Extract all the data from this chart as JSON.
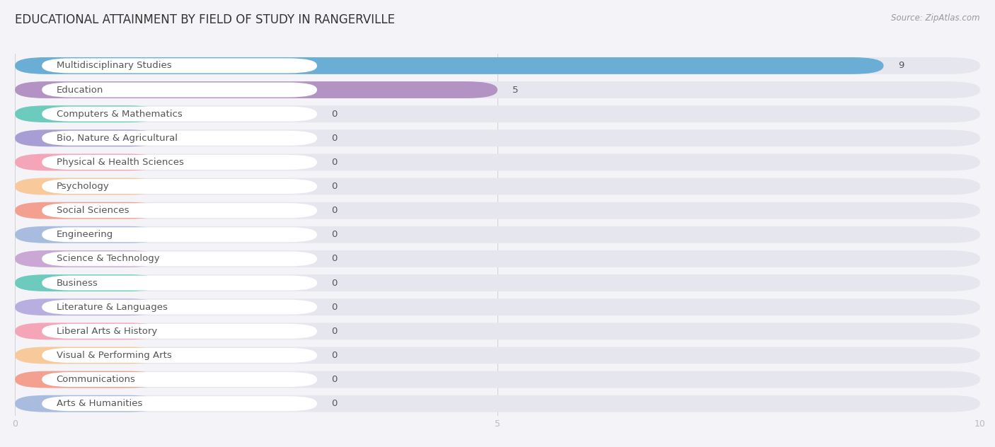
{
  "title": "EDUCATIONAL ATTAINMENT BY FIELD OF STUDY IN RANGERVILLE",
  "source": "Source: ZipAtlas.com",
  "categories": [
    "Multidisciplinary Studies",
    "Education",
    "Computers & Mathematics",
    "Bio, Nature & Agricultural",
    "Physical & Health Sciences",
    "Psychology",
    "Social Sciences",
    "Engineering",
    "Science & Technology",
    "Business",
    "Literature & Languages",
    "Liberal Arts & History",
    "Visual & Performing Arts",
    "Communications",
    "Arts & Humanities"
  ],
  "values": [
    9,
    5,
    0,
    0,
    0,
    0,
    0,
    0,
    0,
    0,
    0,
    0,
    0,
    0,
    0
  ],
  "bar_colors": [
    "#6aaed6",
    "#b393c4",
    "#6dcbbe",
    "#a89ed4",
    "#f4a6b8",
    "#f8c99a",
    "#f4a090",
    "#a8bce0",
    "#c9a8d4",
    "#6dcbbe",
    "#b8aee0",
    "#f4a6b8",
    "#f8c99a",
    "#f4a090",
    "#a8bce0"
  ],
  "stub_colors": [
    "#6aaed6",
    "#b393c4",
    "#6dcbbe",
    "#a89ed4",
    "#f4a6b8",
    "#f8c99a",
    "#f4a090",
    "#a8bce0",
    "#c9a8d4",
    "#6dcbbe",
    "#b8aee0",
    "#f4a6b8",
    "#f8c99a",
    "#f4a090",
    "#a8bce0"
  ],
  "xlim": [
    0,
    10
  ],
  "xticks": [
    0,
    5,
    10
  ],
  "background_color": "#f4f4f8",
  "bar_bg_color": "#e6e6ee",
  "white_pill_color": "#ffffff",
  "title_fontsize": 12,
  "label_fontsize": 9.5,
  "tick_fontsize": 9,
  "value_label_fontsize": 9.5
}
